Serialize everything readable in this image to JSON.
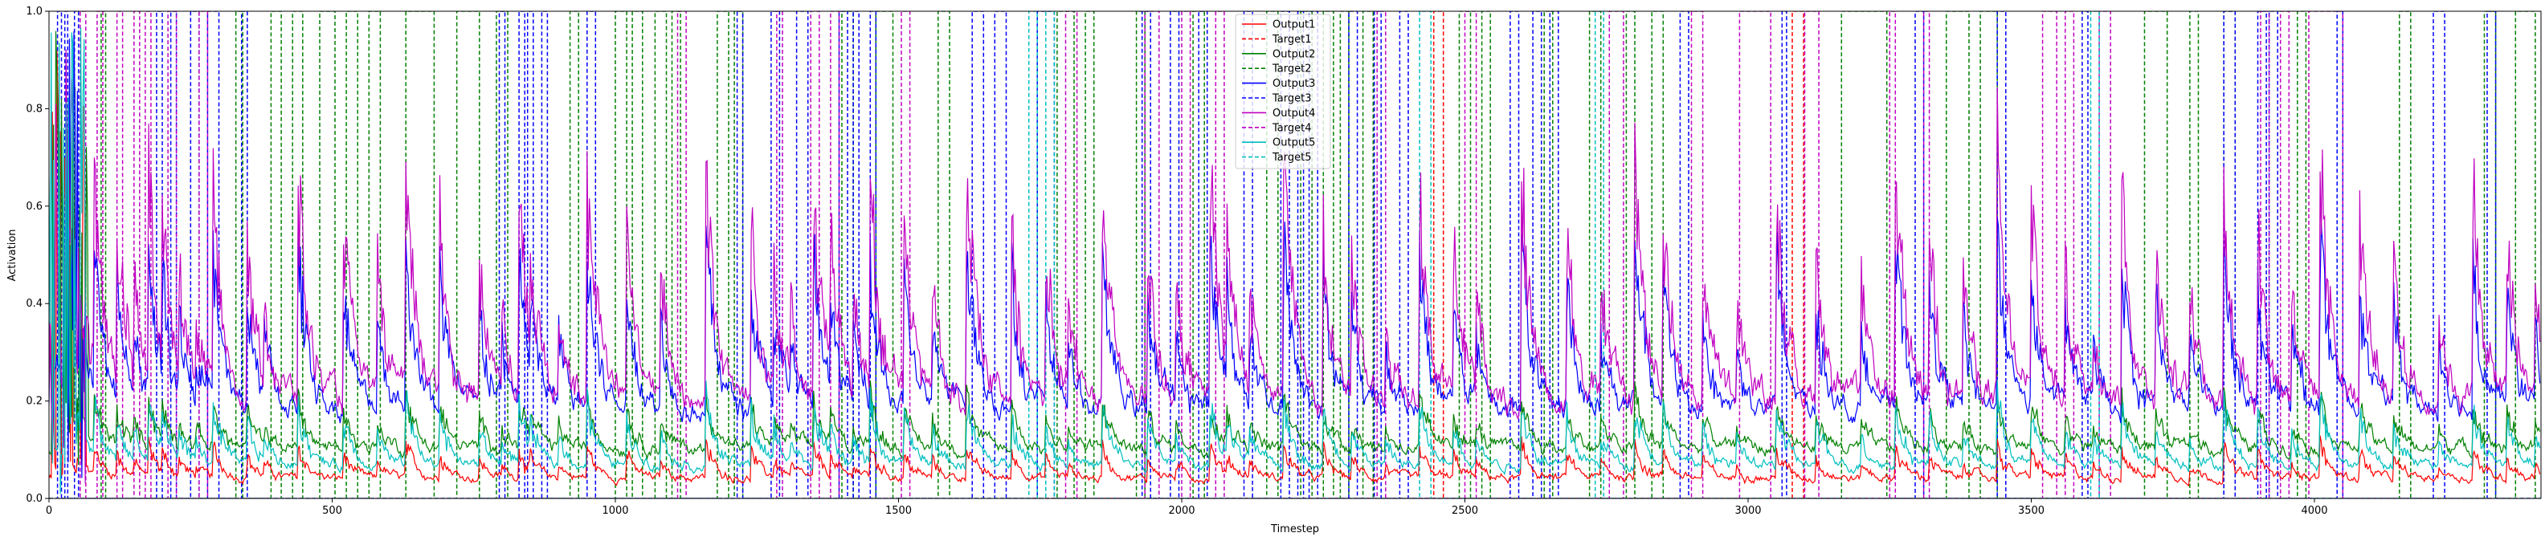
{
  "chart_data": {
    "type": "line",
    "xlabel": "Timestep",
    "ylabel": "Activation",
    "xlim": [
      0,
      4400
    ],
    "ylim": [
      0,
      1.0
    ],
    "x_ticks": [
      0,
      500,
      1000,
      1500,
      2000,
      2500,
      3000,
      3500,
      4000
    ],
    "x_tick_labels": [
      "0",
      "500",
      "1000",
      "1500",
      "2000",
      "2500",
      "3000",
      "3500",
      "4000"
    ],
    "y_ticks": [
      0.0,
      0.2,
      0.4,
      0.6,
      0.8,
      1.0
    ],
    "y_tick_labels": [
      "0.0",
      "0.2",
      "0.4",
      "0.6",
      "0.8",
      "1.0"
    ],
    "grid": false,
    "legend_position": "upper-center",
    "series": [
      {
        "name": "Output1",
        "color": "#ff0000",
        "dash": "solid",
        "kind": "output",
        "base": 0.04,
        "noise": 0.012,
        "spike": 0.05
      },
      {
        "name": "Target1",
        "color": "#ff0000",
        "dash": "dashed",
        "kind": "target",
        "pulses": [
          [
            2445,
            2462
          ],
          [
            3078,
            3098
          ]
        ]
      },
      {
        "name": "Output2",
        "color": "#008000",
        "dash": "solid",
        "kind": "output",
        "base": 0.1,
        "noise": 0.02,
        "spike": 0.08
      },
      {
        "name": "Target2",
        "color": "#008000",
        "dash": "dashed",
        "kind": "target",
        "pulses": [
          [
            92,
            100
          ],
          [
            330,
            342
          ],
          [
            392,
            410
          ],
          [
            430,
            448
          ],
          [
            478,
            505
          ],
          [
            525,
            545
          ],
          [
            565,
            585
          ],
          [
            630,
            680
          ],
          [
            720,
            760
          ],
          [
            790,
            810
          ],
          [
            920,
            935
          ],
          [
            1000,
            1020
          ],
          [
            1030,
            1048
          ],
          [
            1070,
            1090
          ],
          [
            1100,
            1115
          ],
          [
            1180,
            1200
          ],
          [
            1210,
            1225
          ],
          [
            1400,
            1420
          ],
          [
            1460,
            1490
          ],
          [
            1570,
            1590
          ],
          [
            1780,
            1810
          ],
          [
            1830,
            1845
          ],
          [
            1920,
            1935
          ],
          [
            2020,
            2040
          ],
          [
            2150,
            2170
          ],
          [
            2210,
            2230
          ],
          [
            2250,
            2268
          ],
          [
            2280,
            2295
          ],
          [
            2320,
            2338
          ],
          [
            2490,
            2510
          ],
          [
            2530,
            2545
          ],
          [
            2640,
            2655
          ],
          [
            2720,
            2740
          ],
          [
            2785,
            2800
          ],
          [
            2830,
            2850
          ],
          [
            3165,
            3245
          ],
          [
            3350,
            3390
          ],
          [
            3410,
            3440
          ],
          [
            3700,
            3740
          ],
          [
            3780,
            3795
          ],
          [
            3840,
            3860
          ],
          [
            3970,
            3985
          ],
          [
            4150,
            4170
          ],
          [
            4300,
            4320
          ],
          [
            4355,
            4390
          ]
        ]
      },
      {
        "name": "Output3",
        "color": "#0000ff",
        "dash": "solid",
        "kind": "output",
        "base": 0.18,
        "noise": 0.035,
        "spike": 0.25
      },
      {
        "name": "Target3",
        "color": "#0000ff",
        "dash": "dashed",
        "kind": "target",
        "pulses": [
          [
            15,
            22
          ],
          [
            28,
            33
          ],
          [
            45,
            52
          ],
          [
            190,
            200
          ],
          [
            215,
            225
          ],
          [
            250,
            265
          ],
          [
            280,
            300
          ],
          [
            340,
            350
          ],
          [
            795,
            805
          ],
          [
            830,
            840
          ],
          [
            845,
            855
          ],
          [
            870,
            880
          ],
          [
            950,
            965
          ],
          [
            1215,
            1225
          ],
          [
            1275,
            1290
          ],
          [
            1320,
            1340
          ],
          [
            1395,
            1410
          ],
          [
            1420,
            1430
          ],
          [
            1450,
            1460
          ],
          [
            1630,
            1650
          ],
          [
            1670,
            1690
          ],
          [
            1745,
            1775
          ],
          [
            1930,
            1945
          ],
          [
            1980,
            1995
          ],
          [
            2030,
            2045
          ],
          [
            2110,
            2125
          ],
          [
            2175,
            2190
          ],
          [
            2205,
            2215
          ],
          [
            2225,
            2240
          ],
          [
            2295,
            2310
          ],
          [
            2340,
            2352
          ],
          [
            2385,
            2400
          ],
          [
            2580,
            2595
          ],
          [
            2620,
            2635
          ],
          [
            2650,
            2665
          ],
          [
            2880,
            2895
          ],
          [
            3060,
            3068
          ],
          [
            3295,
            3310
          ],
          [
            3440,
            3455
          ],
          [
            3590,
            3600
          ],
          [
            3840,
            3860
          ],
          [
            3900,
            3915
          ],
          [
            3920,
            3935
          ],
          [
            4040,
            4050
          ],
          [
            4210,
            4230
          ],
          [
            4305,
            4320
          ]
        ]
      },
      {
        "name": "Output4",
        "color": "#c000c0",
        "dash": "solid",
        "kind": "output",
        "base": 0.2,
        "noise": 0.045,
        "spike": 0.35
      },
      {
        "name": "Target4",
        "color": "#c000c0",
        "dash": "dashed",
        "kind": "target",
        "pulses": [
          [
            55,
            65
          ],
          [
            85,
            95
          ],
          [
            120,
            130
          ],
          [
            150,
            160
          ],
          [
            170,
            180
          ],
          [
            210,
            225
          ],
          [
            265,
            280
          ],
          [
            1110,
            1125
          ],
          [
            1285,
            1295
          ],
          [
            1345,
            1360
          ],
          [
            1380,
            1395
          ],
          [
            1505,
            1520
          ],
          [
            1795,
            1815
          ],
          [
            1935,
            1960
          ],
          [
            2000,
            2015
          ],
          [
            2060,
            2075
          ],
          [
            2345,
            2360
          ],
          [
            2500,
            2520
          ],
          [
            2755,
            2780
          ],
          [
            2900,
            2920
          ],
          [
            2985,
            3040
          ],
          [
            3100,
            3125
          ],
          [
            3250,
            3260
          ],
          [
            3310,
            3320
          ],
          [
            3520,
            3545
          ],
          [
            3560,
            3575
          ],
          [
            3620,
            3640
          ],
          [
            3905,
            3920
          ],
          [
            3940,
            3955
          ],
          [
            3990,
            4050
          ]
        ]
      },
      {
        "name": "Output5",
        "color": "#00bfbf",
        "dash": "solid",
        "kind": "output",
        "base": 0.065,
        "noise": 0.015,
        "spike": 0.1
      },
      {
        "name": "Target5",
        "color": "#00bfbf",
        "dash": "dashed",
        "kind": "target",
        "pulses": [
          [
            1730,
            1745
          ],
          [
            1760,
            1775
          ],
          [
            2420,
            2440
          ],
          [
            2730,
            2745
          ],
          [
            3605,
            3620
          ]
        ]
      }
    ],
    "spike_times": [
      10,
      30,
      50,
      60,
      80,
      120,
      150,
      175,
      200,
      230,
      260,
      290,
      350,
      380,
      440,
      520,
      580,
      630,
      690,
      760,
      800,
      830,
      850,
      900,
      950,
      1020,
      1080,
      1160,
      1240,
      1280,
      1310,
      1350,
      1380,
      1420,
      1450,
      1510,
      1560,
      1620,
      1700,
      1760,
      1800,
      1860,
      1940,
      1990,
      2050,
      2080,
      2120,
      2180,
      2250,
      2300,
      2360,
      2420,
      2480,
      2520,
      2600,
      2680,
      2740,
      2800,
      2850,
      2920,
      2980,
      3050,
      3120,
      3200,
      3260,
      3320,
      3380,
      3440,
      3500,
      3560,
      3610,
      3660,
      3720,
      3780,
      3840,
      3900,
      3960,
      4010,
      4080,
      4140,
      4220,
      4280,
      4340,
      4390
    ]
  }
}
